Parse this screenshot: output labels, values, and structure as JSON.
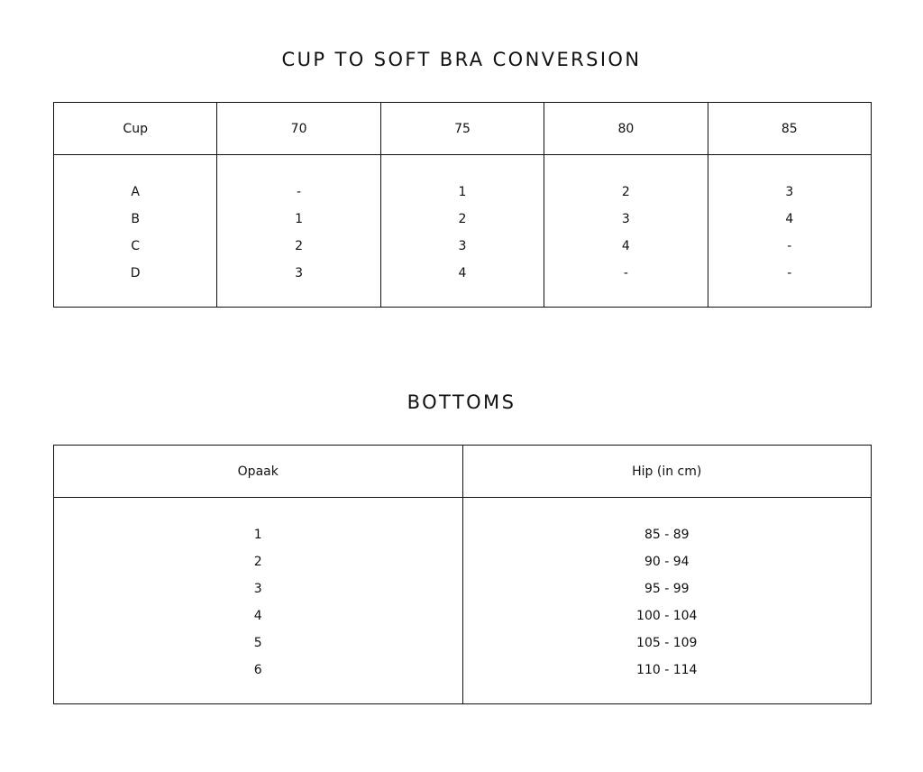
{
  "bra": {
    "title": "CUP TO SOFT BRA CONVERSION",
    "headers": [
      "Cup",
      "70",
      "75",
      "80",
      "85"
    ],
    "columns": [
      [
        "A",
        "B",
        "C",
        "D"
      ],
      [
        "-",
        "1",
        "2",
        "3"
      ],
      [
        "1",
        "2",
        "3",
        "4"
      ],
      [
        "2",
        "3",
        "4",
        "-"
      ],
      [
        "3",
        "4",
        "-",
        "-"
      ]
    ]
  },
  "bottoms": {
    "title": "BOTTOMS",
    "headers": [
      "Opaak",
      "Hip (in cm)"
    ],
    "columns": [
      [
        "1",
        "2",
        "3",
        "4",
        "5",
        "6"
      ],
      [
        "85 - 89",
        "90 - 94",
        "95 - 99",
        "100 - 104",
        "105 - 109",
        "110 - 114"
      ]
    ]
  }
}
